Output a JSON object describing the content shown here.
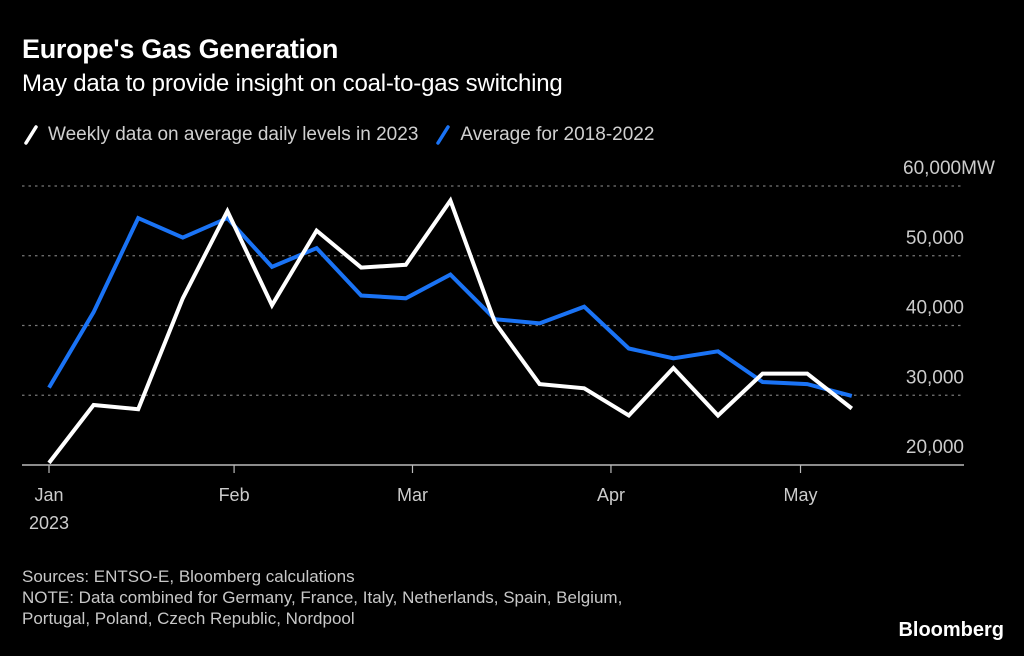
{
  "header": {
    "title": "Europe's Gas Generation",
    "subtitle": "May data to provide insight on coal-to-gas switching"
  },
  "footer": {
    "sources": "Sources: ENTSO-E, Bloomberg calculations",
    "note_line1": "NOTE: Data combined for Germany, France, Italy, Netherlands, Spain, Belgium,",
    "note_line2": "Portugal, Poland, Czech Republic, Nordpool"
  },
  "brand": "Bloomberg",
  "colors": {
    "background": "#000000",
    "series_2023": "#ffffff",
    "series_avg": "#1a73f5",
    "gridline": "#777777",
    "axis": "#bbbbbb",
    "tick_label": "#cccccc"
  },
  "chart_data": {
    "type": "line",
    "title": "Europe's Gas Generation",
    "subtitle": "May data to provide insight on coal-to-gas switching",
    "xlabel": "",
    "ylabel": "MW",
    "y_unit_suffix": "MW",
    "ylim": [
      20000,
      60000
    ],
    "yticks": [
      20000,
      30000,
      40000,
      50000,
      60000
    ],
    "ytick_labels": [
      "20,000",
      "30,000",
      "40,000",
      "50,000",
      "60,000MW"
    ],
    "y_axis_side": "right",
    "grid": "horizontal dotted",
    "legend_position": "top-left",
    "x_ticks": [
      {
        "week": 0,
        "label": "Jan",
        "sublabel": "2023"
      },
      {
        "week": 4.15,
        "label": "Feb",
        "sublabel": ""
      },
      {
        "week": 8.15,
        "label": "Mar",
        "sublabel": ""
      },
      {
        "week": 12.6,
        "label": "Apr",
        "sublabel": ""
      },
      {
        "week": 16.85,
        "label": "May",
        "sublabel": ""
      }
    ],
    "x_range_weeks": [
      -0.6,
      20.6
    ],
    "x": [
      0,
      1,
      2,
      3,
      4,
      5,
      6,
      7,
      8,
      9,
      10,
      11,
      12,
      13,
      14,
      15,
      16,
      17,
      18
    ],
    "x_description": "weeks since start of January 2023",
    "series": [
      {
        "name": "Weekly data on average daily levels in 2023",
        "color": "#ffffff",
        "values": [
          20300,
          28600,
          28000,
          43900,
          56400,
          42900,
          53600,
          48300,
          48700,
          57900,
          40400,
          31600,
          31000,
          27100,
          33900,
          27100,
          33100,
          33100,
          28100
        ]
      },
      {
        "name": "Average for 2018-2022",
        "color": "#1a73f5",
        "values": [
          31100,
          41900,
          55400,
          52600,
          55400,
          48400,
          51100,
          44300,
          43900,
          47300,
          40900,
          40300,
          42700,
          36700,
          35300,
          36300,
          31900,
          31600,
          29900
        ]
      }
    ]
  }
}
